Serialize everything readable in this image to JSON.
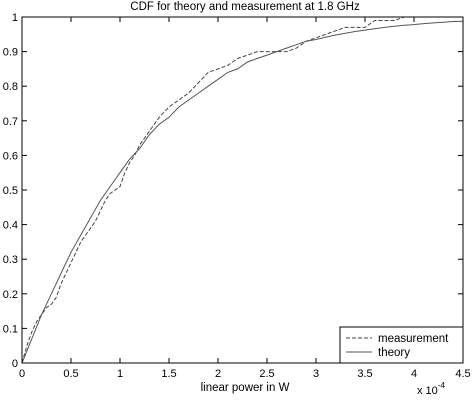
{
  "chart_data": {
    "type": "line",
    "title": "CDF for theory and measurement at 1.8 GHz",
    "xlabel": "linear power in W",
    "ylabel": "",
    "x_multiplier": "x 10",
    "x_multiplier_exp": "-4",
    "xlim": [
      0,
      4.5
    ],
    "ylim": [
      0,
      1
    ],
    "xticks": [
      0,
      0.5,
      1,
      1.5,
      2,
      2.5,
      3,
      3.5,
      4,
      4.5
    ],
    "xtick_labels": [
      "0",
      "0.5",
      "1",
      "1.5",
      "2",
      "2.5",
      "3",
      "3.5",
      "4",
      "4.5"
    ],
    "yticks": [
      0,
      0.1,
      0.2,
      0.3,
      0.4,
      0.5,
      0.6,
      0.7,
      0.8,
      0.9,
      1
    ],
    "ytick_labels": [
      "0",
      "0.1",
      "0.2",
      "0.3",
      "0.4",
      "0.5",
      "0.6",
      "0.7",
      "0.8",
      "0.9",
      "1"
    ],
    "grid": false,
    "legend_position": "bottom-right",
    "series": [
      {
        "name": "measurement",
        "style": "dashed",
        "color": "#444444",
        "x": [
          0,
          0.05,
          0.1,
          0.15,
          0.2,
          0.25,
          0.3,
          0.35,
          0.4,
          0.45,
          0.5,
          0.55,
          0.6,
          0.65,
          0.7,
          0.75,
          0.8,
          0.85,
          0.9,
          0.95,
          1.0,
          1.05,
          1.1,
          1.15,
          1.2,
          1.3,
          1.4,
          1.5,
          1.6,
          1.7,
          1.8,
          1.9,
          2.0,
          2.1,
          2.2,
          2.3,
          2.4,
          2.5,
          2.6,
          2.7,
          2.8,
          2.9,
          3.0,
          3.1,
          3.2,
          3.3,
          3.4,
          3.5,
          3.55,
          3.6,
          3.7,
          3.8,
          3.9,
          4.0,
          4.1,
          4.2,
          4.3
        ],
        "y": [
          0,
          0.05,
          0.09,
          0.12,
          0.14,
          0.16,
          0.17,
          0.19,
          0.23,
          0.26,
          0.29,
          0.32,
          0.35,
          0.37,
          0.39,
          0.41,
          0.44,
          0.47,
          0.49,
          0.5,
          0.51,
          0.55,
          0.58,
          0.6,
          0.63,
          0.67,
          0.71,
          0.74,
          0.76,
          0.78,
          0.81,
          0.84,
          0.85,
          0.86,
          0.88,
          0.89,
          0.9,
          0.9,
          0.9,
          0.9,
          0.91,
          0.93,
          0.94,
          0.95,
          0.96,
          0.97,
          0.97,
          0.97,
          0.98,
          0.99,
          0.99,
          0.99,
          1.0,
          1.0,
          1.0,
          1.0,
          1.0
        ]
      },
      {
        "name": "theory",
        "style": "solid",
        "color": "#555555",
        "x": [
          0,
          0.1,
          0.2,
          0.3,
          0.4,
          0.5,
          0.6,
          0.7,
          0.8,
          0.9,
          1.0,
          1.1,
          1.2,
          1.3,
          1.4,
          1.5,
          1.6,
          1.7,
          1.8,
          1.9,
          2.0,
          2.1,
          2.2,
          2.3,
          2.4,
          2.5,
          2.6,
          2.7,
          2.8,
          2.9,
          3.0,
          3.1,
          3.2,
          3.3,
          3.4,
          3.5,
          3.6,
          3.7,
          3.8,
          3.9,
          4.0,
          4.1,
          4.2,
          4.3,
          4.4,
          4.5
        ],
        "y": [
          0,
          0.07,
          0.14,
          0.2,
          0.26,
          0.32,
          0.37,
          0.42,
          0.47,
          0.51,
          0.55,
          0.59,
          0.62,
          0.66,
          0.69,
          0.71,
          0.74,
          0.76,
          0.78,
          0.8,
          0.82,
          0.84,
          0.85,
          0.87,
          0.88,
          0.89,
          0.9,
          0.91,
          0.92,
          0.93,
          0.935,
          0.942,
          0.948,
          0.953,
          0.958,
          0.962,
          0.966,
          0.97,
          0.973,
          0.976,
          0.978,
          0.981,
          0.983,
          0.985,
          0.987,
          0.988
        ]
      }
    ]
  }
}
